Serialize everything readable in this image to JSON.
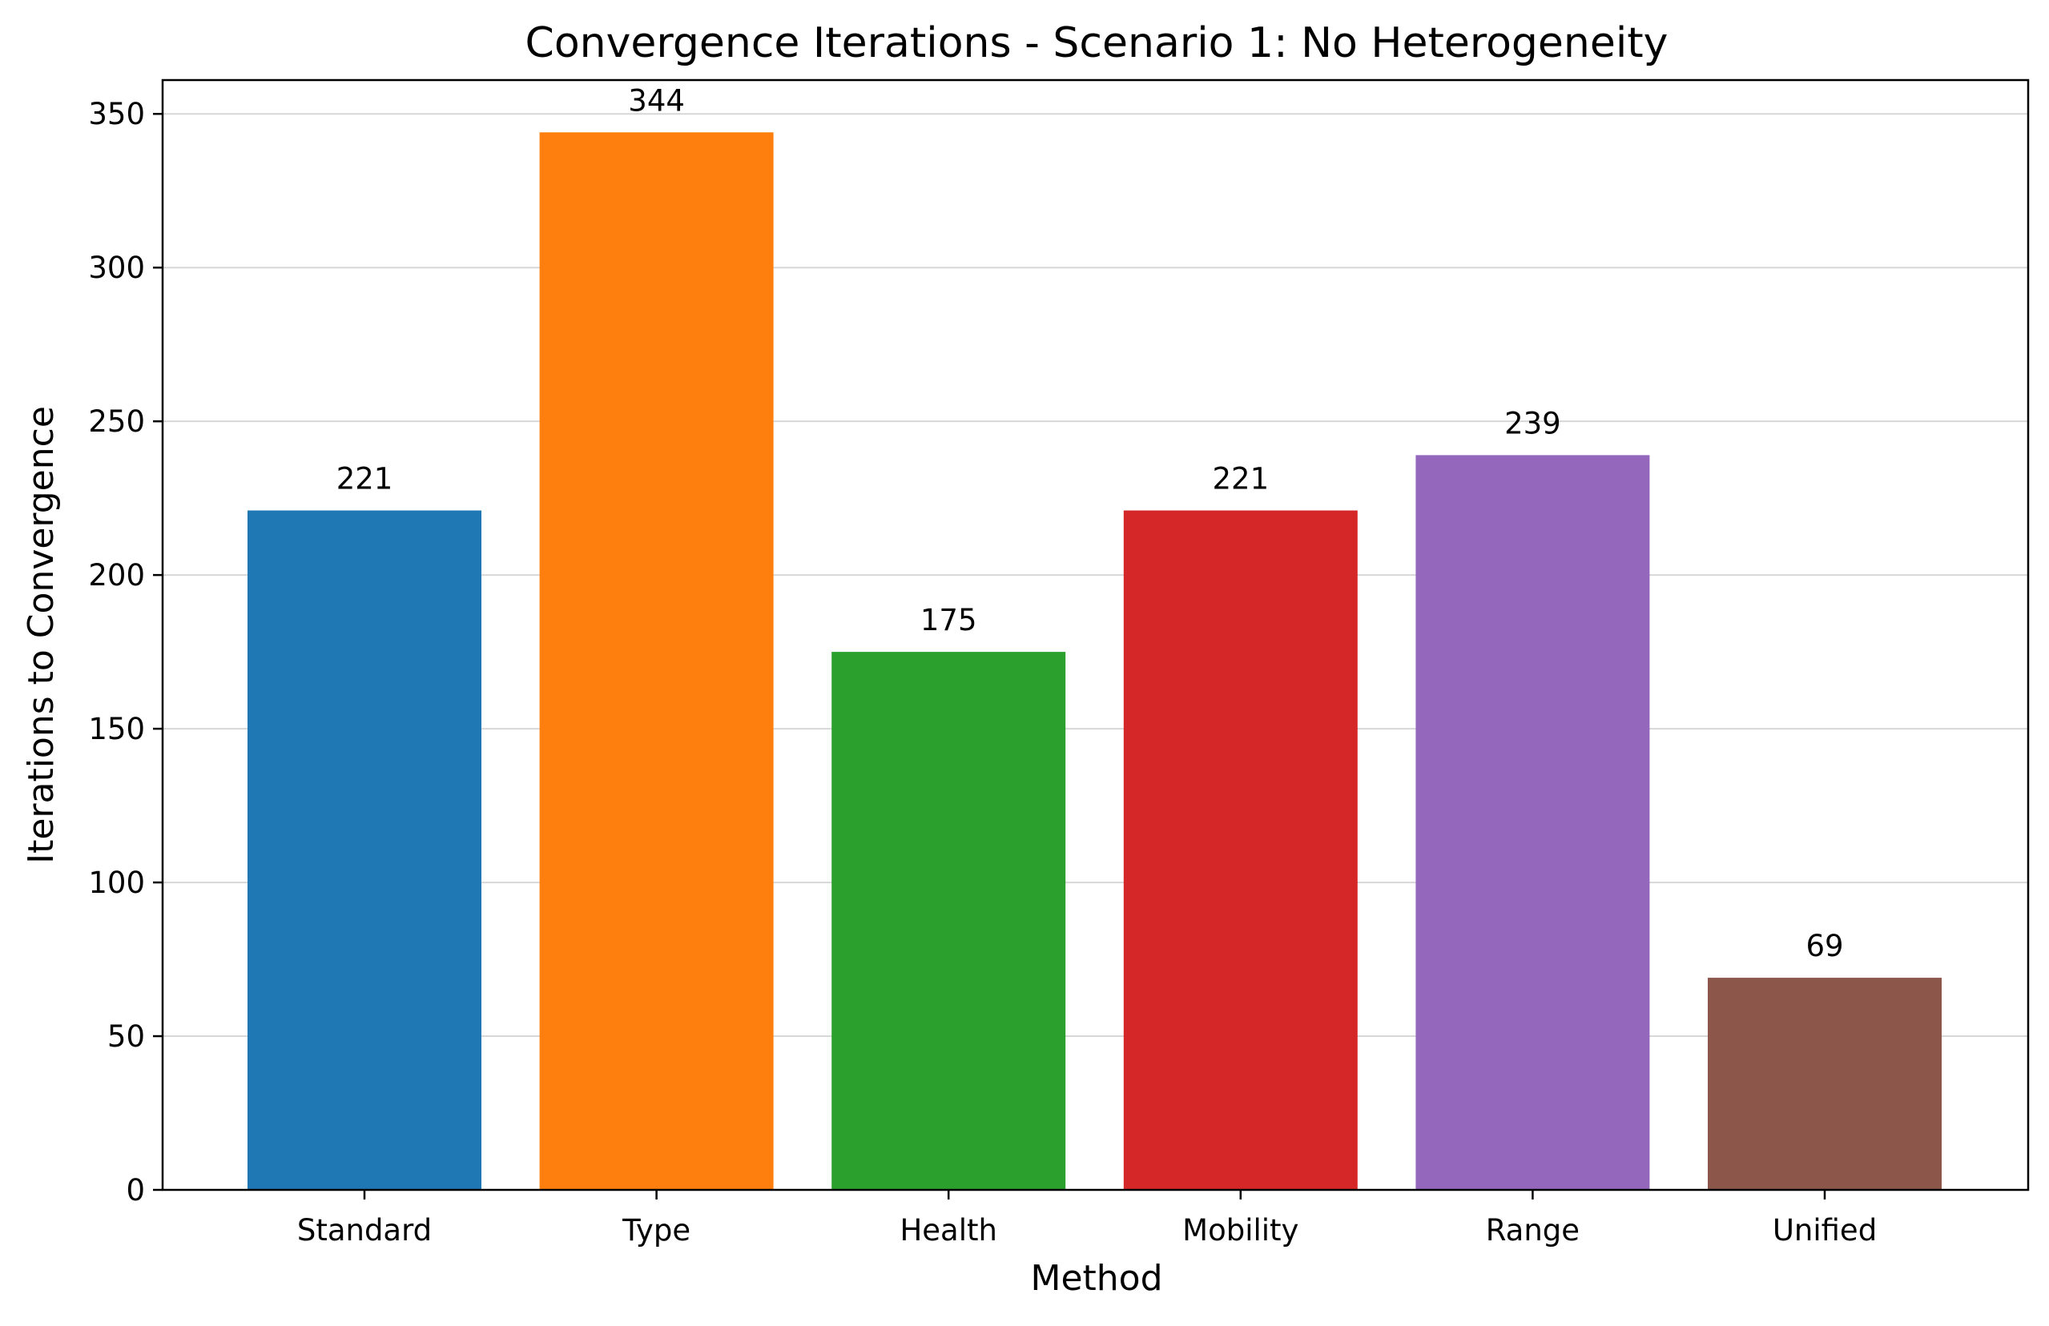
{
  "chart_data": {
    "type": "bar",
    "title": "Convergence Iterations - Scenario 1: No Heterogeneity",
    "xlabel": "Method",
    "ylabel": "Iterations to Convergence",
    "categories": [
      "Standard",
      "Type",
      "Health",
      "Mobility",
      "Range",
      "Unified"
    ],
    "values": [
      221,
      344,
      175,
      221,
      239,
      69
    ],
    "data_labels": [
      "221",
      "344",
      "175",
      "221",
      "239",
      "69"
    ],
    "colors": [
      "#1f77b4",
      "#ff7f0e",
      "#2ca02c",
      "#d62728",
      "#9467bd",
      "#8c564b"
    ],
    "ylim": [
      0,
      361
    ],
    "yticks": [
      0,
      50,
      100,
      150,
      200,
      250,
      300,
      350
    ],
    "ytick_labels": [
      "0",
      "50",
      "100",
      "150",
      "200",
      "250",
      "300",
      "350"
    ],
    "grid": "y-axis only",
    "legend": "none"
  }
}
